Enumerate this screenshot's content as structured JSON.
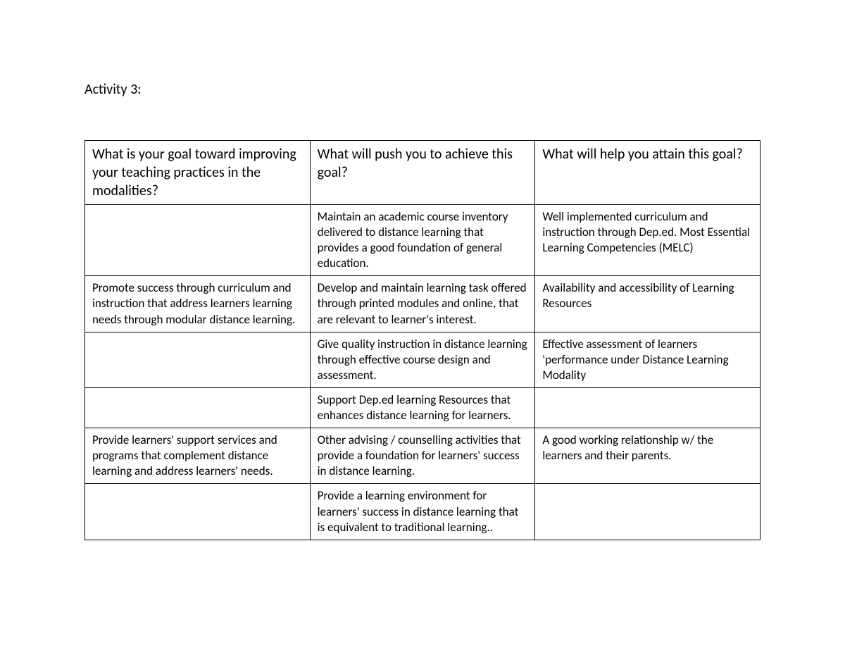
{
  "title": "Activity 3:",
  "table": {
    "headers": [
      "What is your goal toward improving your teaching practices in the modalities?",
      "What will push you to achieve this goal?",
      "What will help you attain this goal?"
    ],
    "rows": [
      {
        "c1": "",
        "c2": "Maintain an academic course inventory delivered  to distance learning that provides a good foundation of general education.",
        "c3": "Well implemented curriculum and instruction through Dep.ed. Most Essential Learning Competencies (MELC)"
      },
      {
        "c1": "Promote success through curriculum and instruction that address learners learning needs through modular distance learning.",
        "c2": "Develop and maintain learning task offered through printed modules and online, that are relevant to learner's interest.",
        "c3": "Availability and accessibility of Learning Resources"
      },
      {
        "c1": "",
        "c2": "Give quality instruction in distance learning through effective course design and assessment.",
        "c3": "Effective assessment of learners 'performance under Distance Learning Modality"
      },
      {
        "c1": "",
        "c2": "Support Dep.ed learning Resources  that enhances distance learning for learners.",
        "c3": ""
      },
      {
        "c1": "Provide learners' support services and programs that complement distance learning and address learners' needs.",
        "c2": "Other  advising / counselling activities that provide a foundation for learners' success in distance learning.",
        "c3": "A good working relationship w/ the learners and their parents."
      },
      {
        "c1": "",
        "c2": "Provide a learning environment for learners' success in distance learning that is equivalent to traditional learning..",
        "c3": ""
      }
    ]
  },
  "style": {
    "background_color": "#ffffff",
    "text_color": "#000000",
    "border_color": "#000000",
    "font_family": "Calibri",
    "title_fontsize": 20,
    "header_fontsize": 20,
    "body_fontsize": 17
  }
}
